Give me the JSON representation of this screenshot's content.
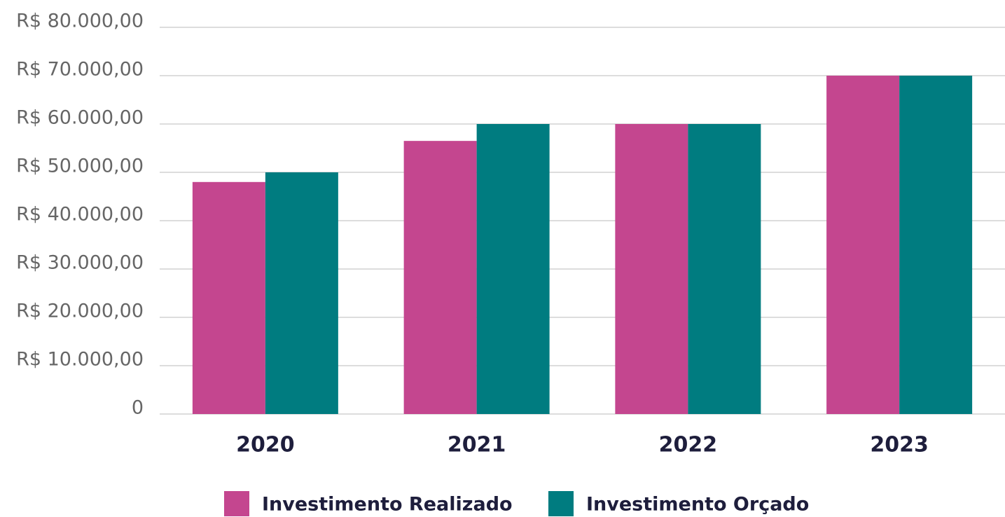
{
  "chart_data": {
    "type": "bar",
    "categories": [
      "2020",
      "2021",
      "2022",
      "2023"
    ],
    "series": [
      {
        "name": "Investimento Realizado",
        "color": "#c4468f",
        "values": [
          48000,
          56500,
          60000,
          70000
        ]
      },
      {
        "name": "Investimento Orçado",
        "color": "#007c80",
        "values": [
          50000,
          60000,
          60000,
          70000
        ]
      }
    ],
    "ylim": [
      0,
      80000
    ],
    "yticks": [
      0,
      {
        "value": 10000,
        "label": "R$ 10.000,00"
      },
      {
        "value": 20000,
        "label": "R$ 20.000,00"
      },
      {
        "value": 30000,
        "label": "R$ 30.000,00"
      },
      {
        "value": 40000,
        "label": "R$ 40.000,00"
      },
      {
        "value": 50000,
        "label": "R$ 50.000,00"
      },
      {
        "value": 60000,
        "label": "R$ 60.000,00"
      },
      {
        "value": 70000,
        "label": "R$ 70.000,00"
      },
      {
        "value": 80000,
        "label": "R$ 80.000,00"
      }
    ],
    "grid": true,
    "legend": "bottom"
  }
}
